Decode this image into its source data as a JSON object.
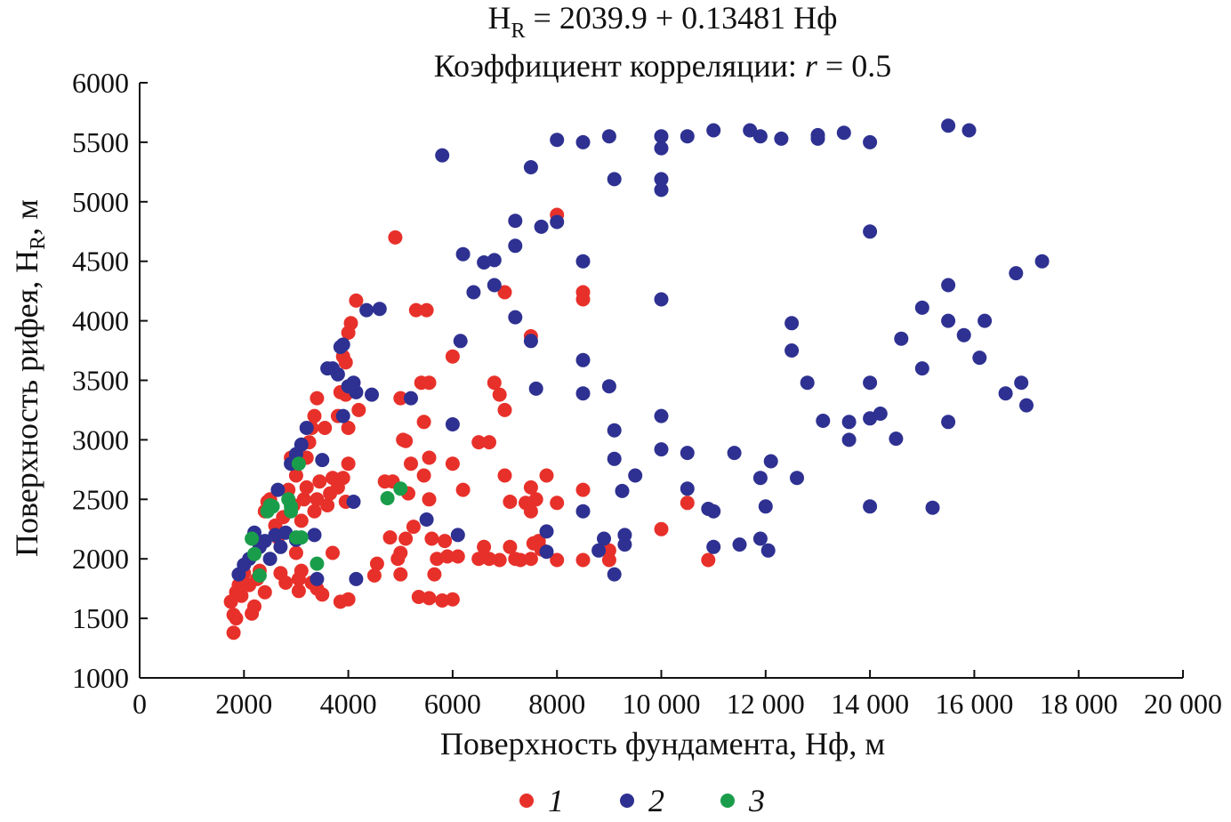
{
  "chart_data": {
    "type": "scatter",
    "title_parts": {
      "lhs_main": "H",
      "lhs_sub": "R",
      "rhs": " = 2039.9 + 0.13481 Нф"
    },
    "subtitle_parts": {
      "prefix": "Коэффициент корреляции: ",
      "var": "r",
      "suffix": " = 0.5"
    },
    "xlabel": "Поверхность фундамента, Нф, м",
    "ylabel_parts": {
      "prefix": "Поверхность рифея, H",
      "sub": "R",
      "suffix": ", м"
    },
    "xlim": [
      0,
      20000
    ],
    "ylim": [
      1000,
      6000
    ],
    "x_ticks": [
      0,
      2000,
      4000,
      6000,
      8000,
      10000,
      12000,
      14000,
      16000,
      18000,
      20000
    ],
    "x_tick_labels": [
      "0",
      "2000",
      "4000",
      "6000",
      "8000",
      "10 000",
      "12 000",
      "14 000",
      "16 000",
      "18 000",
      "20 000"
    ],
    "y_ticks": [
      1000,
      1500,
      2000,
      2500,
      3000,
      3500,
      4000,
      4500,
      5000,
      5500,
      6000
    ],
    "y_tick_labels": [
      "1000",
      "1500",
      "2000",
      "2500",
      "3000",
      "3500",
      "4000",
      "4500",
      "5000",
      "5500",
      "6000"
    ],
    "grid": false,
    "legend_position": "bottom-center",
    "series": [
      {
        "name": "1",
        "color": "#e8302a",
        "points": [
          [
            1750,
            1640
          ],
          [
            1800,
            1380
          ],
          [
            1800,
            1530
          ],
          [
            1850,
            1500
          ],
          [
            1850,
            1720
          ],
          [
            1900,
            1780
          ],
          [
            1950,
            1690
          ],
          [
            2000,
            1880
          ],
          [
            2100,
            1780
          ],
          [
            2150,
            1540
          ],
          [
            2200,
            1600
          ],
          [
            2250,
            1830
          ],
          [
            2300,
            1900
          ],
          [
            2400,
            1720
          ],
          [
            2400,
            2400
          ],
          [
            2450,
            2480
          ],
          [
            2500,
            2500
          ],
          [
            2600,
            2280
          ],
          [
            2650,
            2180
          ],
          [
            2700,
            1880
          ],
          [
            2750,
            2350
          ],
          [
            2800,
            1800
          ],
          [
            2850,
            2580
          ],
          [
            2900,
            2850
          ],
          [
            2950,
            2450
          ],
          [
            3000,
            2700
          ],
          [
            3000,
            2050
          ],
          [
            3050,
            1830
          ],
          [
            3050,
            1730
          ],
          [
            3100,
            2320
          ],
          [
            3100,
            1900
          ],
          [
            3150,
            2500
          ],
          [
            3200,
            2600
          ],
          [
            3200,
            2850
          ],
          [
            3250,
            2980
          ],
          [
            3300,
            3100
          ],
          [
            3300,
            1800
          ],
          [
            3350,
            3200
          ],
          [
            3350,
            2400
          ],
          [
            3400,
            2500
          ],
          [
            3400,
            1750
          ],
          [
            3400,
            3350
          ],
          [
            3450,
            2650
          ],
          [
            3500,
            1700
          ],
          [
            3550,
            3100
          ],
          [
            3600,
            2450
          ],
          [
            3650,
            2550
          ],
          [
            3700,
            2050
          ],
          [
            3700,
            2680
          ],
          [
            3800,
            2600
          ],
          [
            3800,
            3200
          ],
          [
            3850,
            3400
          ],
          [
            3850,
            1640
          ],
          [
            3900,
            2680
          ],
          [
            3900,
            3700
          ],
          [
            3950,
            3650
          ],
          [
            3950,
            3380
          ],
          [
            3950,
            2480
          ],
          [
            4000,
            1660
          ],
          [
            4000,
            3900
          ],
          [
            4000,
            3100
          ],
          [
            4000,
            2800
          ],
          [
            4050,
            3980
          ],
          [
            4150,
            4170
          ],
          [
            4200,
            3250
          ],
          [
            4500,
            1860
          ],
          [
            4550,
            1960
          ],
          [
            4700,
            2650
          ],
          [
            4800,
            2180
          ],
          [
            4850,
            2650
          ],
          [
            4900,
            4700
          ],
          [
            4950,
            2000
          ],
          [
            5000,
            3350
          ],
          [
            5000,
            2050
          ],
          [
            5000,
            1870
          ],
          [
            5050,
            3000
          ],
          [
            5100,
            2990
          ],
          [
            5100,
            2170
          ],
          [
            5150,
            2550
          ],
          [
            5200,
            2800
          ],
          [
            5250,
            2270
          ],
          [
            5300,
            4090
          ],
          [
            5350,
            1680
          ],
          [
            5400,
            3480
          ],
          [
            5450,
            3150
          ],
          [
            5450,
            2700
          ],
          [
            5500,
            4090
          ],
          [
            5550,
            3480
          ],
          [
            5550,
            2850
          ],
          [
            5550,
            2500
          ],
          [
            5550,
            1670
          ],
          [
            5600,
            2170
          ],
          [
            5650,
            1870
          ],
          [
            5700,
            2000
          ],
          [
            5800,
            1650
          ],
          [
            5850,
            2150
          ],
          [
            5900,
            2020
          ],
          [
            6000,
            3700
          ],
          [
            6000,
            2800
          ],
          [
            6000,
            1660
          ],
          [
            6100,
            2020
          ],
          [
            6200,
            2580
          ],
          [
            6500,
            2980
          ],
          [
            6500,
            2000
          ],
          [
            6600,
            2100
          ],
          [
            6700,
            2980
          ],
          [
            6700,
            2000
          ],
          [
            6800,
            3480
          ],
          [
            6900,
            1990
          ],
          [
            6900,
            3380
          ],
          [
            7000,
            4240
          ],
          [
            7000,
            3250
          ],
          [
            7000,
            2700
          ],
          [
            7100,
            2480
          ],
          [
            7100,
            2100
          ],
          [
            7200,
            2000
          ],
          [
            7300,
            1990
          ],
          [
            7400,
            2470
          ],
          [
            7500,
            2600
          ],
          [
            7500,
            2000
          ],
          [
            7500,
            2400
          ],
          [
            7550,
            2130
          ],
          [
            7600,
            2500
          ],
          [
            7650,
            2150
          ],
          [
            7700,
            2080
          ],
          [
            7800,
            2700
          ],
          [
            8000,
            4890
          ],
          [
            8000,
            2470
          ],
          [
            8000,
            1990
          ],
          [
            8500,
            4240
          ],
          [
            8500,
            4180
          ],
          [
            8500,
            2580
          ],
          [
            9000,
            2070
          ],
          [
            9000,
            1990
          ],
          [
            10000,
            2250
          ],
          [
            10500,
            2470
          ],
          [
            10900,
            1990
          ],
          [
            7500,
            3870
          ],
          [
            8500,
            1990
          ]
        ]
      },
      {
        "name": "2",
        "color": "#2e3191",
        "points": [
          [
            1900,
            1870
          ],
          [
            2000,
            1950
          ],
          [
            2100,
            2000
          ],
          [
            2200,
            2220
          ],
          [
            2300,
            2100
          ],
          [
            2400,
            2150
          ],
          [
            2500,
            2000
          ],
          [
            2600,
            2200
          ],
          [
            2650,
            2580
          ],
          [
            2700,
            2100
          ],
          [
            2800,
            2220
          ],
          [
            2900,
            2800
          ],
          [
            3000,
            2160
          ],
          [
            3000,
            2880
          ],
          [
            3100,
            2960
          ],
          [
            3200,
            3100
          ],
          [
            3350,
            2200
          ],
          [
            3400,
            1830
          ],
          [
            3500,
            2830
          ],
          [
            3600,
            3600
          ],
          [
            3700,
            3600
          ],
          [
            3800,
            3550
          ],
          [
            3850,
            3780
          ],
          [
            3900,
            3800
          ],
          [
            3900,
            3200
          ],
          [
            4000,
            3450
          ],
          [
            4100,
            3480
          ],
          [
            4100,
            2480
          ],
          [
            4150,
            3400
          ],
          [
            4150,
            1830
          ],
          [
            4350,
            4090
          ],
          [
            4450,
            3380
          ],
          [
            4600,
            4100
          ],
          [
            5200,
            3350
          ],
          [
            5500,
            2330
          ],
          [
            5800,
            5390
          ],
          [
            6000,
            3130
          ],
          [
            6100,
            2200
          ],
          [
            6150,
            3830
          ],
          [
            6200,
            4560
          ],
          [
            6400,
            4240
          ],
          [
            6600,
            4490
          ],
          [
            6800,
            4510
          ],
          [
            6800,
            4300
          ],
          [
            7200,
            4840
          ],
          [
            7200,
            4030
          ],
          [
            7200,
            4630
          ],
          [
            7500,
            5290
          ],
          [
            7600,
            3430
          ],
          [
            7500,
            3830
          ],
          [
            7700,
            4790
          ],
          [
            7800,
            2230
          ],
          [
            7800,
            2060
          ],
          [
            8000,
            5520
          ],
          [
            8000,
            4830
          ],
          [
            8500,
            5500
          ],
          [
            8500,
            4500
          ],
          [
            8500,
            3670
          ],
          [
            8500,
            3390
          ],
          [
            8500,
            2400
          ],
          [
            8800,
            2070
          ],
          [
            8900,
            2170
          ],
          [
            9000,
            5550
          ],
          [
            9000,
            3450
          ],
          [
            9100,
            5190
          ],
          [
            9100,
            3080
          ],
          [
            9100,
            2840
          ],
          [
            9100,
            1870
          ],
          [
            9250,
            2570
          ],
          [
            9300,
            2200
          ],
          [
            9300,
            2120
          ],
          [
            9500,
            2700
          ],
          [
            10000,
            5550
          ],
          [
            10000,
            5450
          ],
          [
            10000,
            5190
          ],
          [
            10000,
            5100
          ],
          [
            10000,
            4180
          ],
          [
            10000,
            3200
          ],
          [
            10000,
            2920
          ],
          [
            10500,
            5550
          ],
          [
            10500,
            2890
          ],
          [
            10500,
            2590
          ],
          [
            11000,
            5600
          ],
          [
            11000,
            2100
          ],
          [
            11000,
            2400
          ],
          [
            10900,
            2420
          ],
          [
            11400,
            2890
          ],
          [
            11500,
            2120
          ],
          [
            11700,
            5600
          ],
          [
            11900,
            5550
          ],
          [
            11900,
            2680
          ],
          [
            11900,
            2170
          ],
          [
            12000,
            2440
          ],
          [
            12050,
            2070
          ],
          [
            12100,
            2820
          ],
          [
            12300,
            5530
          ],
          [
            12500,
            3980
          ],
          [
            12500,
            3750
          ],
          [
            12600,
            2680
          ],
          [
            12800,
            3480
          ],
          [
            13000,
            5560
          ],
          [
            13000,
            5530
          ],
          [
            13100,
            3160
          ],
          [
            13500,
            5580
          ],
          [
            13600,
            3150
          ],
          [
            13600,
            3000
          ],
          [
            14000,
            5500
          ],
          [
            14000,
            4750
          ],
          [
            14000,
            3480
          ],
          [
            14000,
            3180
          ],
          [
            14000,
            2440
          ],
          [
            14200,
            3220
          ],
          [
            14500,
            3010
          ],
          [
            14600,
            3850
          ],
          [
            15000,
            4110
          ],
          [
            15000,
            3600
          ],
          [
            15200,
            2430
          ],
          [
            15500,
            5640
          ],
          [
            15500,
            4300
          ],
          [
            15500,
            4000
          ],
          [
            15500,
            3150
          ],
          [
            15800,
            3880
          ],
          [
            15900,
            5600
          ],
          [
            16100,
            3690
          ],
          [
            16200,
            4000
          ],
          [
            16600,
            3390
          ],
          [
            16800,
            4400
          ],
          [
            16900,
            3480
          ],
          [
            17000,
            3290
          ],
          [
            17300,
            4500
          ]
        ]
      },
      {
        "name": "3",
        "color": "#1a9d4a",
        "points": [
          [
            2150,
            2170
          ],
          [
            2200,
            2040
          ],
          [
            2300,
            1860
          ],
          [
            2450,
            2400
          ],
          [
            2500,
            2450
          ],
          [
            2550,
            2440
          ],
          [
            2850,
            2500
          ],
          [
            2900,
            2440
          ],
          [
            2900,
            2400
          ],
          [
            3000,
            2180
          ],
          [
            3050,
            2800
          ],
          [
            3100,
            2180
          ],
          [
            3400,
            1960
          ],
          [
            4750,
            2510
          ],
          [
            5000,
            2590
          ]
        ]
      }
    ]
  }
}
